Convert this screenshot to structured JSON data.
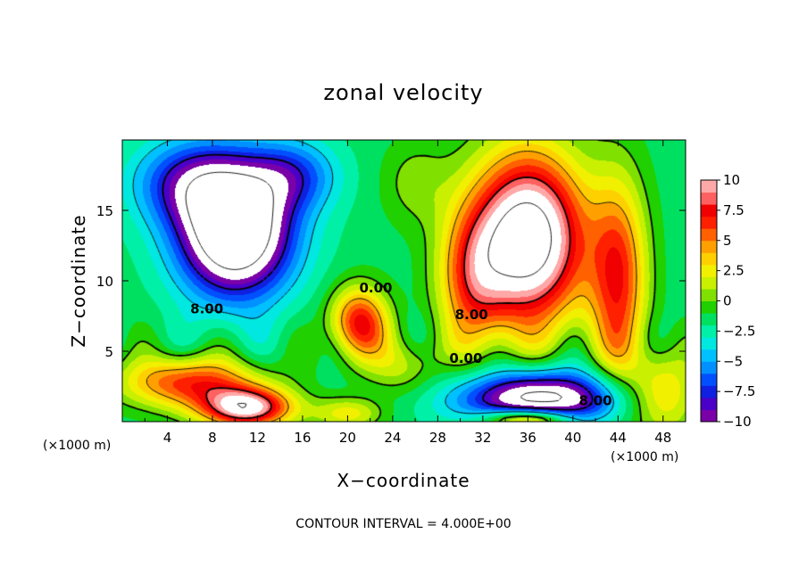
{
  "chart_data": {
    "type": "heatmap",
    "title": "zonal velocity",
    "xlabel": "X−coordinate",
    "ylabel": "Z−coordinate",
    "xlim": [
      0,
      50
    ],
    "ylim": [
      0,
      20
    ],
    "x_ticks": [
      4,
      8,
      12,
      16,
      20,
      24,
      28,
      32,
      36,
      40,
      44,
      48
    ],
    "y_ticks": [
      5,
      10,
      15
    ],
    "x_units": "(×1000 m)",
    "x_units_right": "(×1000 m)",
    "colorbar": {
      "range": [
        -10,
        10
      ],
      "ticks": [
        "10",
        "7.5",
        "5",
        "2.5",
        "0",
        "−2.5",
        "−5",
        "−7.5",
        "−10"
      ]
    },
    "contour_labels": [
      {
        "text": "8.00",
        "x": 7.5,
        "z": 8.0
      },
      {
        "text": "0.00",
        "x": 22.5,
        "z": 9.5
      },
      {
        "text": "8.00",
        "x": 31.0,
        "z": 7.6
      },
      {
        "text": "0.00",
        "x": 30.5,
        "z": 4.5
      },
      {
        "text": "8.00",
        "x": 42.0,
        "z": 1.5
      }
    ],
    "footer": "CONTOUR INTERVAL = 4.000E+00",
    "features": [
      {
        "name": "upper-left negative cell",
        "x": 10,
        "z": 12.5,
        "min": -14
      },
      {
        "name": "upper-right positive jet",
        "x": 36,
        "z": 13,
        "max": 14
      },
      {
        "name": "lower-left positive layer",
        "x": 6,
        "z": 2.5,
        "max": 7
      },
      {
        "name": "mid positive patch",
        "x": 21,
        "z": 7,
        "max": 8
      },
      {
        "name": "bottom-left white core",
        "x": 11,
        "z": 1.2,
        "max": 12
      },
      {
        "name": "bottom-right negative core",
        "x": 38,
        "z": 1.5,
        "min": -12
      }
    ]
  }
}
